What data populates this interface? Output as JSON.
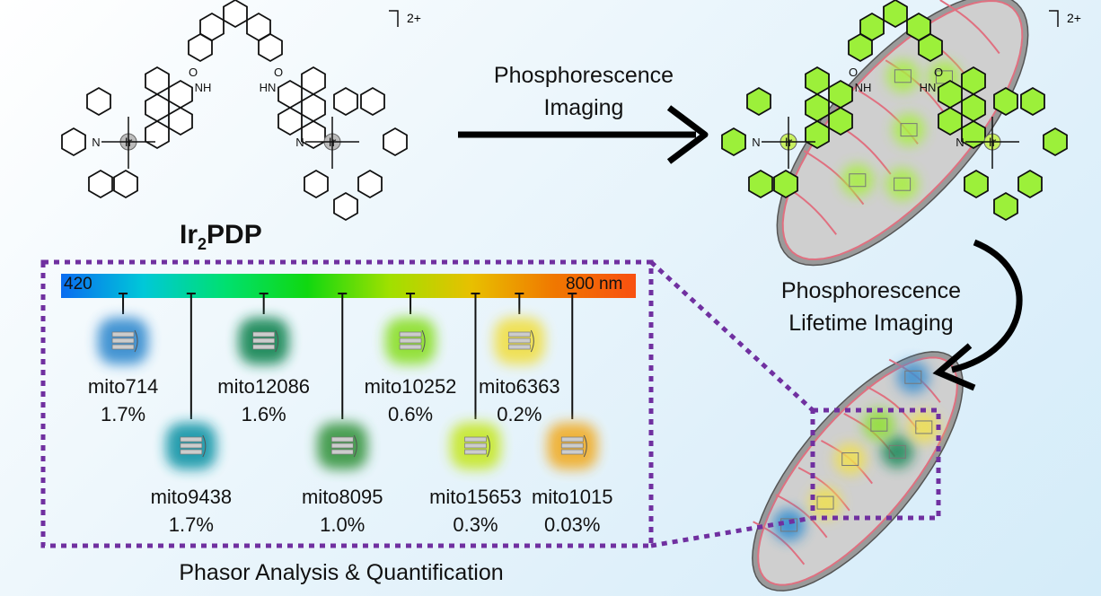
{
  "compound": {
    "name_main": "Ir",
    "name_sub": "2",
    "name_rest": "PDP",
    "charge": "2+",
    "metal_label": "Ir",
    "n_label": "N",
    "nh_label": "NH",
    "hn_label": "HN",
    "o_label": "O"
  },
  "steps": {
    "imaging": [
      "Phosphorescence",
      "Imaging"
    ],
    "lifetime": [
      "Phosphorescence",
      "Lifetime Imaging"
    ],
    "analysis": "Phasor Analysis & Quantification"
  },
  "spectrum": {
    "min_label": "420",
    "max_label": "800 nm",
    "range_nm": [
      420,
      800
    ],
    "colors": [
      "#0a6cf0",
      "#00c8d8",
      "#00e070",
      "#10d810",
      "#a0e000",
      "#e8c000",
      "#f07800",
      "#f85010"
    ]
  },
  "mito_clusters": [
    {
      "name": "mito714",
      "percent": "1.7%",
      "wavelength_nm": 461,
      "color": "#3b8fd0",
      "row": 1
    },
    {
      "name": "mito9438",
      "percent": "1.7%",
      "wavelength_nm": 506,
      "color": "#1f9aaa",
      "row": 2
    },
    {
      "name": "mito12086",
      "percent": "1.6%",
      "wavelength_nm": 554,
      "color": "#1e8a5a",
      "row": 1
    },
    {
      "name": "mito8095",
      "percent": "1.0%",
      "wavelength_nm": 606,
      "color": "#3f9a4a",
      "row": 2
    },
    {
      "name": "mito10252",
      "percent": "0.6%",
      "wavelength_nm": 651,
      "color": "#90e030",
      "row": 1
    },
    {
      "name": "mito15653",
      "percent": "0.3%",
      "wavelength_nm": 694,
      "color": "#c8e830",
      "row": 2
    },
    {
      "name": "mito6363",
      "percent": "0.2%",
      "wavelength_nm": 723,
      "color": "#f0e050",
      "row": 1
    },
    {
      "name": "mito1015",
      "percent": "0.03%",
      "wavelength_nm": 758,
      "color": "#f0b030",
      "row": 2
    }
  ],
  "colors": {
    "ligand_highlight": "#9cf03a",
    "box_border": "#7030a0",
    "membrane": "#e07080",
    "mito_fill": "#cfcfcf"
  }
}
